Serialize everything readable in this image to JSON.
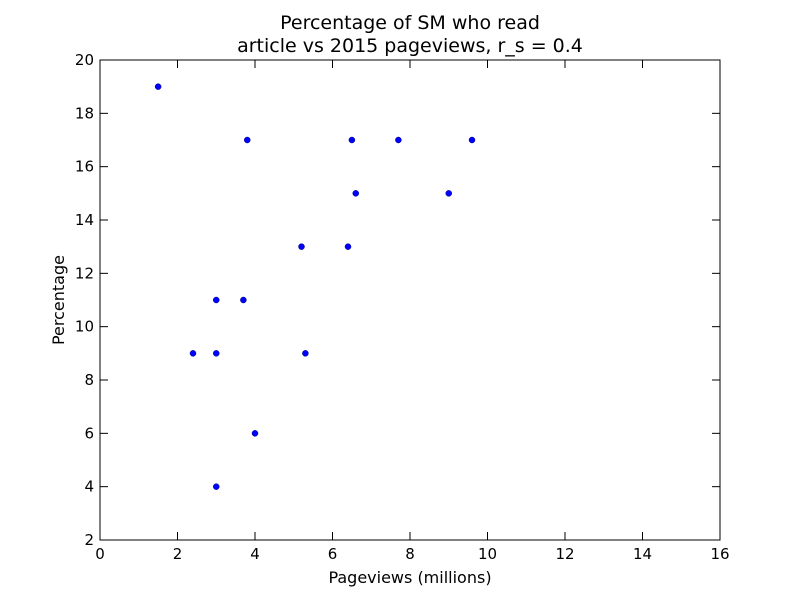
{
  "chart_data": {
    "type": "scatter",
    "title_lines": [
      "Percentage of SM who read",
      "article vs 2015 pageviews, r_s = 0.4"
    ],
    "xlabel": "Pageviews (millions)",
    "ylabel": "Percentage",
    "xlim": [
      0,
      16
    ],
    "ylim": [
      2,
      20
    ],
    "xticks": [
      "0",
      "2",
      "4",
      "6",
      "8",
      "10",
      "12",
      "14",
      "16"
    ],
    "yticks": [
      "2",
      "4",
      "6",
      "8",
      "10",
      "12",
      "14",
      "16",
      "18",
      "20"
    ],
    "grid": false,
    "point_color": "#0000ff",
    "points": [
      {
        "x": 1.5,
        "y": 19
      },
      {
        "x": 3.8,
        "y": 17
      },
      {
        "x": 6.5,
        "y": 17
      },
      {
        "x": 7.7,
        "y": 17
      },
      {
        "x": 9.6,
        "y": 17
      },
      {
        "x": 6.6,
        "y": 15
      },
      {
        "x": 9.0,
        "y": 15
      },
      {
        "x": 5.2,
        "y": 13
      },
      {
        "x": 6.4,
        "y": 13
      },
      {
        "x": 3.0,
        "y": 11
      },
      {
        "x": 3.7,
        "y": 11
      },
      {
        "x": 2.4,
        "y": 9
      },
      {
        "x": 3.0,
        "y": 9
      },
      {
        "x": 5.3,
        "y": 9
      },
      {
        "x": 4.0,
        "y": 6
      },
      {
        "x": 3.0,
        "y": 4
      }
    ]
  }
}
